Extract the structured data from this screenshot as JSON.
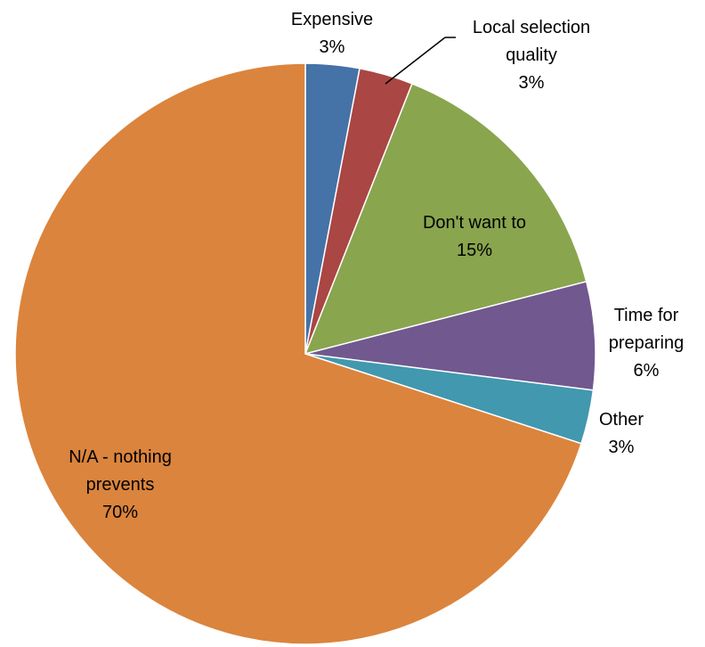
{
  "chart_data": {
    "type": "pie",
    "title": "",
    "slices": [
      {
        "label_lines": [
          "Expensive"
        ],
        "percent_label": "3%",
        "value": 3,
        "color": "#4572a7"
      },
      {
        "label_lines": [
          "Local selection",
          "quality"
        ],
        "percent_label": "3%",
        "value": 3,
        "color": "#aa4643"
      },
      {
        "label_lines": [
          "Don't want to"
        ],
        "percent_label": "15%",
        "value": 15,
        "color": "#89a54e"
      },
      {
        "label_lines": [
          "Time for",
          "preparing"
        ],
        "percent_label": "6%",
        "value": 6,
        "color": "#71588f"
      },
      {
        "label_lines": [
          "Other"
        ],
        "percent_label": "3%",
        "value": 3,
        "color": "#4198af"
      },
      {
        "label_lines": [
          "N/A - nothing",
          "prevents"
        ],
        "percent_label": "70%",
        "value": 70,
        "color": "#db843d"
      }
    ]
  }
}
